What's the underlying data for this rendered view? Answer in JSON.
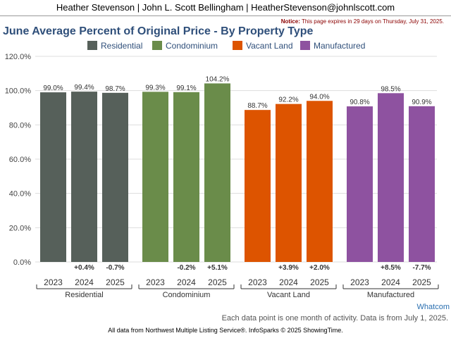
{
  "header": {
    "agent_line": "Heather Stevenson | John L. Scott Bellingham | HeatherStevenson@johnlscott.com",
    "notice_label": "Notice:",
    "notice_text": "This page expires in 29 days on Thursday, July 31, 2025."
  },
  "region_link": "Whatcom",
  "footer": {
    "note": "Each data point is one month of activity. Data is from July 1, 2025.",
    "source": "All data from Northwest Multiple Listing Service®. InfoSparks © 2025 ShowingTime."
  },
  "chart_data": {
    "type": "bar",
    "title": "June Average Percent of Original Price - By Property Type",
    "ylim": [
      0,
      120
    ],
    "yticks": [
      "0.0%",
      "20.0%",
      "40.0%",
      "60.0%",
      "80.0%",
      "100.0%",
      "120.0%"
    ],
    "grid": true,
    "legend_position": "top",
    "groups": [
      {
        "name": "Residential",
        "color": "#56605a",
        "years": [
          "2023",
          "2024",
          "2025"
        ],
        "values": [
          99.0,
          99.4,
          98.7
        ],
        "value_labels": [
          "99.0%",
          "99.4%",
          "98.7%"
        ],
        "changes": [
          "",
          "+0.4%",
          "-0.7%"
        ]
      },
      {
        "name": "Condominium",
        "color": "#6a8c4a",
        "years": [
          "2023",
          "2024",
          "2025"
        ],
        "values": [
          99.3,
          99.1,
          104.2
        ],
        "value_labels": [
          "99.3%",
          "99.1%",
          "104.2%"
        ],
        "changes": [
          "",
          "-0.2%",
          "+5.1%"
        ]
      },
      {
        "name": "Vacant Land",
        "color": "#dd5400",
        "years": [
          "2023",
          "2024",
          "2025"
        ],
        "values": [
          88.7,
          92.2,
          94.0
        ],
        "value_labels": [
          "88.7%",
          "92.2%",
          "94.0%"
        ],
        "changes": [
          "",
          "+3.9%",
          "+2.0%"
        ]
      },
      {
        "name": "Manufactured",
        "color": "#8e52a0",
        "years": [
          "2023",
          "2024",
          "2025"
        ],
        "values": [
          90.8,
          98.5,
          90.9
        ],
        "value_labels": [
          "90.8%",
          "98.5%",
          "90.9%"
        ],
        "changes": [
          "",
          "+8.5%",
          "-7.7%"
        ]
      }
    ]
  }
}
